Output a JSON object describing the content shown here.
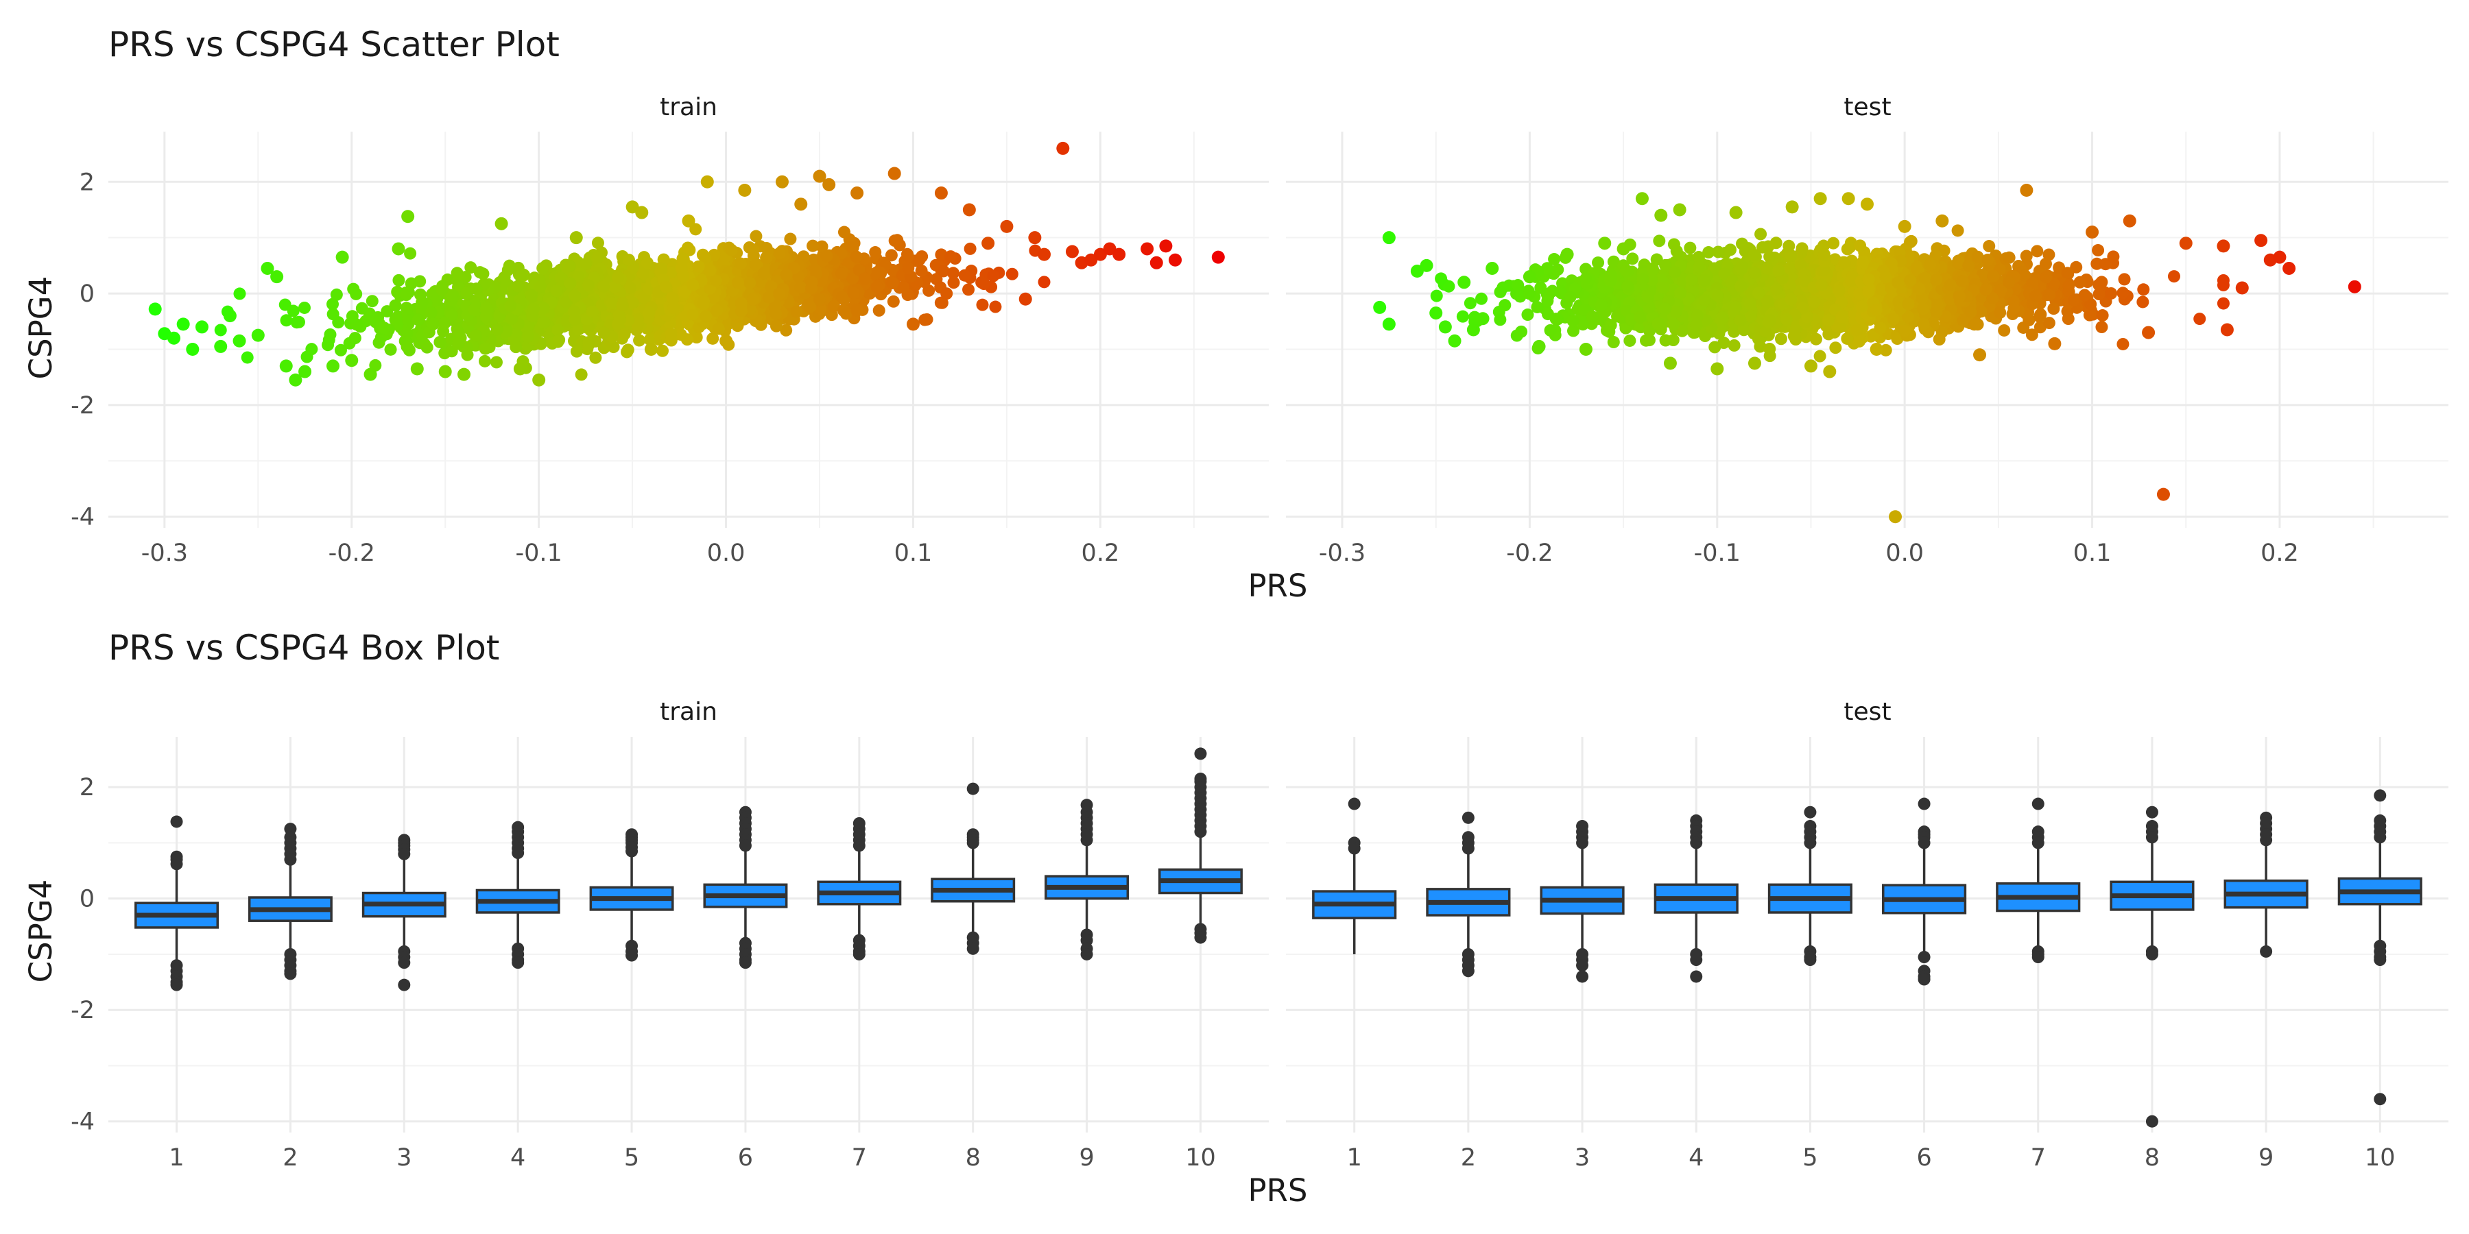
{
  "colors": {
    "low": "#22ff00",
    "mid": "#c8b400",
    "high": "#ee0000",
    "box_fill": "#1e90ff",
    "box_line": "#333333",
    "grid": "#ebebeb"
  },
  "chart_data": [
    {
      "type": "scatter",
      "title": "PRS vs CSPG4 Scatter Plot",
      "xlabel": "PRS",
      "ylabel": "CSPG4",
      "xlim": [
        -0.33,
        0.29
      ],
      "ylim": [
        -4.2,
        2.9
      ],
      "x_ticks": [
        -0.3,
        -0.2,
        -0.1,
        0.0,
        0.1,
        0.2
      ],
      "x_tick_labels": [
        "-0.3",
        "-0.2",
        "-0.1",
        "0.0",
        "0.1",
        "0.2"
      ],
      "y_ticks": [
        -4,
        -2,
        0,
        2
      ],
      "y_tick_labels": [
        "-4",
        "-2",
        "0",
        "2"
      ],
      "grid": true,
      "color_by": "PRS (green to red gradient)",
      "panels": [
        {
          "name": "train",
          "slope": 2.8,
          "intercept": 0.05,
          "spread": 0.32,
          "points": [
            [
              -0.305,
              -0.28
            ],
            [
              -0.3,
              -0.72
            ],
            [
              -0.295,
              -0.8
            ],
            [
              -0.29,
              -0.55
            ],
            [
              -0.285,
              -1.0
            ],
            [
              -0.28,
              -0.6
            ],
            [
              -0.27,
              -0.95
            ],
            [
              -0.265,
              -0.4
            ],
            [
              -0.26,
              -0.85
            ],
            [
              -0.25,
              -0.75
            ],
            [
              -0.245,
              0.45
            ],
            [
              -0.24,
              0.3
            ],
            [
              -0.235,
              -1.3
            ],
            [
              -0.23,
              -1.55
            ],
            [
              -0.225,
              -1.4
            ],
            [
              -0.21,
              -1.3
            ],
            [
              -0.205,
              0.65
            ],
            [
              -0.2,
              -1.2
            ],
            [
              -0.19,
              -1.45
            ],
            [
              -0.175,
              0.8
            ],
            [
              -0.17,
              1.38
            ],
            [
              -0.165,
              -1.35
            ],
            [
              -0.15,
              -1.4
            ],
            [
              -0.14,
              -1.45
            ],
            [
              -0.12,
              1.25
            ],
            [
              -0.11,
              -1.35
            ],
            [
              -0.1,
              -1.55
            ],
            [
              -0.08,
              1.0
            ],
            [
              -0.05,
              1.55
            ],
            [
              -0.045,
              1.45
            ],
            [
              -0.04,
              -1.0
            ],
            [
              -0.02,
              1.3
            ],
            [
              -0.01,
              2.0
            ],
            [
              0.0,
              -0.85
            ],
            [
              0.01,
              1.85
            ],
            [
              0.03,
              2.0
            ],
            [
              0.04,
              1.6
            ],
            [
              0.05,
              2.1
            ],
            [
              0.055,
              1.95
            ],
            [
              0.07,
              1.8
            ],
            [
              0.07,
              -0.3
            ],
            [
              0.09,
              2.15
            ],
            [
              0.1,
              -0.55
            ],
            [
              0.115,
              1.8
            ],
            [
              0.13,
              1.5
            ],
            [
              0.14,
              0.9
            ],
            [
              0.15,
              1.2
            ],
            [
              0.16,
              -0.1
            ],
            [
              0.165,
              1.0
            ],
            [
              0.17,
              0.7
            ],
            [
              0.18,
              2.6
            ],
            [
              0.185,
              0.75
            ],
            [
              0.19,
              0.55
            ],
            [
              0.195,
              0.6
            ],
            [
              0.2,
              0.7
            ],
            [
              0.205,
              0.8
            ],
            [
              0.21,
              0.7
            ],
            [
              0.225,
              0.8
            ],
            [
              0.23,
              0.55
            ],
            [
              0.235,
              0.85
            ],
            [
              0.24,
              0.6
            ],
            [
              0.263,
              0.65
            ]
          ]
        },
        {
          "name": "test",
          "slope": 0.6,
          "intercept": 0.02,
          "spread": 0.33,
          "points": [
            [
              -0.28,
              -0.25
            ],
            [
              -0.275,
              1.0
            ],
            [
              -0.275,
              -0.55
            ],
            [
              -0.26,
              0.4
            ],
            [
              -0.255,
              0.5
            ],
            [
              -0.25,
              -0.35
            ],
            [
              -0.245,
              -0.6
            ],
            [
              -0.24,
              -0.85
            ],
            [
              -0.235,
              0.2
            ],
            [
              -0.23,
              -0.65
            ],
            [
              -0.225,
              -0.45
            ],
            [
              -0.22,
              0.45
            ],
            [
              -0.2,
              0.3
            ],
            [
              -0.195,
              -0.95
            ],
            [
              -0.18,
              0.7
            ],
            [
              -0.17,
              -1.0
            ],
            [
              -0.16,
              0.9
            ],
            [
              -0.15,
              0.8
            ],
            [
              -0.14,
              1.7
            ],
            [
              -0.13,
              1.4
            ],
            [
              -0.125,
              -1.25
            ],
            [
              -0.12,
              1.5
            ],
            [
              -0.1,
              -1.35
            ],
            [
              -0.09,
              1.45
            ],
            [
              -0.08,
              -1.25
            ],
            [
              -0.06,
              1.55
            ],
            [
              -0.05,
              -1.3
            ],
            [
              -0.045,
              1.7
            ],
            [
              -0.04,
              -1.4
            ],
            [
              -0.03,
              1.7
            ],
            [
              -0.02,
              1.6
            ],
            [
              -0.015,
              -1.0
            ],
            [
              -0.005,
              -4.0
            ],
            [
              0.0,
              1.2
            ],
            [
              0.02,
              1.3
            ],
            [
              0.04,
              -1.1
            ],
            [
              0.065,
              1.85
            ],
            [
              0.08,
              -0.9
            ],
            [
              0.1,
              1.1
            ],
            [
              0.12,
              1.3
            ],
            [
              0.13,
              -0.7
            ],
            [
              0.138,
              -3.6
            ],
            [
              0.15,
              0.9
            ],
            [
              0.17,
              0.85
            ],
            [
              0.172,
              -0.65
            ],
            [
              0.18,
              0.1
            ],
            [
              0.19,
              0.95
            ],
            [
              0.195,
              0.6
            ],
            [
              0.2,
              0.65
            ],
            [
              0.205,
              0.45
            ],
            [
              0.24,
              0.12
            ]
          ]
        }
      ]
    },
    {
      "type": "box",
      "title": "PRS vs CSPG4 Box Plot",
      "xlabel": "PRS",
      "ylabel": "CSPG4",
      "categories": [
        "1",
        "2",
        "3",
        "4",
        "5",
        "6",
        "7",
        "8",
        "9",
        "10"
      ],
      "ylim": [
        -4.2,
        2.9
      ],
      "y_ticks": [
        -4,
        -2,
        0,
        2
      ],
      "y_tick_labels": [
        "-4",
        "-2",
        "0",
        "2"
      ],
      "grid": true,
      "panels": [
        {
          "name": "train",
          "boxes": [
            {
              "q1": -0.52,
              "median": -0.3,
              "q3": -0.08,
              "lo": -1.1,
              "hi": 0.52,
              "outliers": [
                1.38,
                0.75,
                0.7,
                0.62,
                -1.2,
                -1.3,
                -1.4,
                -1.5,
                -1.55
              ]
            },
            {
              "q1": -0.4,
              "median": -0.2,
              "q3": 0.02,
              "lo": -0.98,
              "hi": 0.6,
              "outliers": [
                1.25,
                1.1,
                1.0,
                0.9,
                0.8,
                0.7,
                -1.0,
                -1.1,
                -1.2,
                -1.3,
                -1.35
              ]
            },
            {
              "q1": -0.32,
              "median": -0.1,
              "q3": 0.1,
              "lo": -0.9,
              "hi": 0.72,
              "outliers": [
                1.05,
                1.0,
                0.95,
                0.88,
                0.8,
                -0.95,
                -1.05,
                -1.15,
                -1.55
              ]
            },
            {
              "q1": -0.25,
              "median": -0.05,
              "q3": 0.15,
              "lo": -0.85,
              "hi": 0.75,
              "outliers": [
                1.28,
                1.2,
                1.1,
                1.0,
                0.9,
                0.82,
                -0.9,
                -1.0,
                -1.1,
                -1.15
              ]
            },
            {
              "q1": -0.2,
              "median": 0.0,
              "q3": 0.2,
              "lo": -0.8,
              "hi": 0.8,
              "outliers": [
                1.15,
                1.1,
                1.05,
                1.0,
                0.92,
                0.85,
                -0.85,
                -0.95,
                -1.02
              ]
            },
            {
              "q1": -0.15,
              "median": 0.05,
              "q3": 0.25,
              "lo": -0.75,
              "hi": 0.85,
              "outliers": [
                1.55,
                1.45,
                1.35,
                1.25,
                1.15,
                1.05,
                0.95,
                -0.8,
                -0.9,
                -1.0,
                -1.1,
                -1.15
              ]
            },
            {
              "q1": -0.1,
              "median": 0.1,
              "q3": 0.3,
              "lo": -0.7,
              "hi": 0.9,
              "outliers": [
                1.35,
                1.25,
                1.15,
                1.05,
                0.95,
                -0.75,
                -0.85,
                -0.95,
                -1.0
              ]
            },
            {
              "q1": -0.05,
              "median": 0.15,
              "q3": 0.35,
              "lo": -0.65,
              "hi": 0.95,
              "outliers": [
                1.97,
                1.15,
                1.1,
                1.05,
                1.0,
                -0.7,
                -0.8,
                -0.9
              ]
            },
            {
              "q1": 0.0,
              "median": 0.2,
              "q3": 0.4,
              "lo": -0.6,
              "hi": 1.0,
              "outliers": [
                1.68,
                1.55,
                1.45,
                1.35,
                1.25,
                1.15,
                1.05,
                -0.65,
                -0.75,
                -0.9,
                -1.0
              ]
            },
            {
              "q1": 0.1,
              "median": 0.32,
              "q3": 0.52,
              "lo": -0.5,
              "hi": 1.12,
              "outliers": [
                2.6,
                2.15,
                2.1,
                2.0,
                1.9,
                1.8,
                1.7,
                1.6,
                1.5,
                1.4,
                1.3,
                1.2,
                -0.55,
                -0.62,
                -0.7
              ]
            }
          ]
        },
        {
          "name": "test",
          "boxes": [
            {
              "q1": -0.35,
              "median": -0.1,
              "q3": 0.13,
              "lo": -1.0,
              "hi": 0.8,
              "outliers": [
                1.7,
                1.0,
                0.9
              ]
            },
            {
              "q1": -0.3,
              "median": -0.07,
              "q3": 0.17,
              "lo": -0.95,
              "hi": 0.85,
              "outliers": [
                1.45,
                1.1,
                1.0,
                0.9,
                -1.0,
                -1.1,
                -1.2,
                -1.3
              ]
            },
            {
              "q1": -0.27,
              "median": -0.03,
              "q3": 0.2,
              "lo": -0.95,
              "hi": 0.9,
              "outliers": [
                1.3,
                1.2,
                1.1,
                1.0,
                -1.0,
                -1.1,
                -1.2,
                -1.4
              ]
            },
            {
              "q1": -0.25,
              "median": 0.0,
              "q3": 0.25,
              "lo": -0.95,
              "hi": 0.95,
              "outliers": [
                1.4,
                1.3,
                1.2,
                1.1,
                1.0,
                -1.0,
                -1.1,
                -1.4
              ]
            },
            {
              "q1": -0.25,
              "median": 0.0,
              "q3": 0.25,
              "lo": -0.95,
              "hi": 0.95,
              "outliers": [
                1.55,
                1.3,
                1.2,
                1.1,
                1.0,
                -0.95,
                -1.05,
                -1.1
              ]
            },
            {
              "q1": -0.26,
              "median": -0.02,
              "q3": 0.24,
              "lo": -1.0,
              "hi": 0.95,
              "outliers": [
                1.7,
                1.2,
                1.15,
                1.1,
                1.0,
                -1.05,
                -1.3,
                -1.4,
                -1.45
              ]
            },
            {
              "q1": -0.22,
              "median": 0.02,
              "q3": 0.27,
              "lo": -0.9,
              "hi": 0.95,
              "outliers": [
                1.7,
                1.2,
                1.1,
                1.0,
                -0.95,
                -1.0,
                -1.05
              ]
            },
            {
              "q1": -0.2,
              "median": 0.05,
              "q3": 0.3,
              "lo": -0.9,
              "hi": 1.0,
              "outliers": [
                1.55,
                1.3,
                1.2,
                1.1,
                -0.95,
                -1.0,
                -4.0
              ]
            },
            {
              "q1": -0.16,
              "median": 0.08,
              "q3": 0.32,
              "lo": -0.85,
              "hi": 1.0,
              "outliers": [
                1.45,
                1.35,
                1.25,
                1.15,
                1.05,
                -0.95
              ]
            },
            {
              "q1": -0.1,
              "median": 0.12,
              "q3": 0.36,
              "lo": -0.8,
              "hi": 1.05,
              "outliers": [
                1.85,
                1.4,
                1.3,
                1.2,
                1.1,
                -0.85,
                -0.95,
                -1.05,
                -1.1,
                -3.6
              ]
            }
          ]
        }
      ]
    }
  ]
}
